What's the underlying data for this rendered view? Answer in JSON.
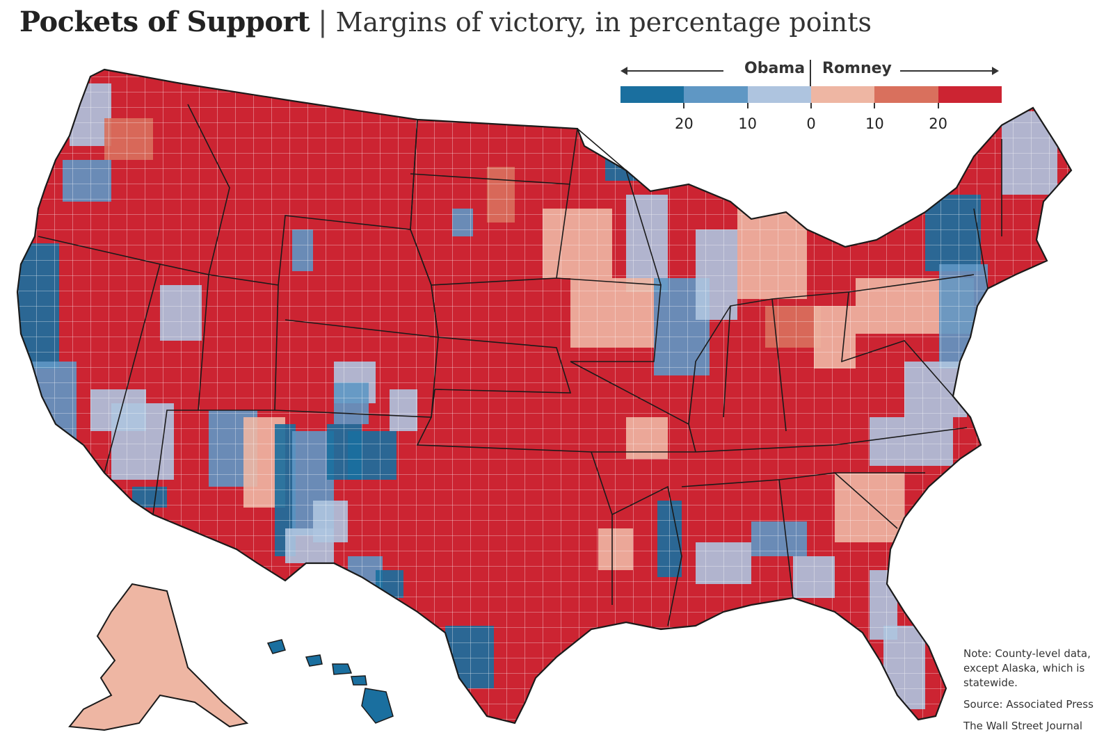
{
  "title": "Pockets of Support",
  "separator": "|",
  "subtitle": "Margins of victory, in percentage points",
  "legend": {
    "left_label": "Obama",
    "right_label": "Romney",
    "colors": [
      "#1a6f9f",
      "#5f97c4",
      "#aec4df",
      "#eeb6a3",
      "#d9705d",
      "#cc2432"
    ],
    "tick_labels": [
      "20",
      "10",
      "0",
      "10",
      "20"
    ]
  },
  "note": "Note: County-level data, except Alaska, which is statewide.",
  "source": "Source: Associated Press",
  "publisher": "The Wall Street Journal",
  "colors": {
    "state_border": "#1a1a1a",
    "county_border": "#ffffff"
  }
}
